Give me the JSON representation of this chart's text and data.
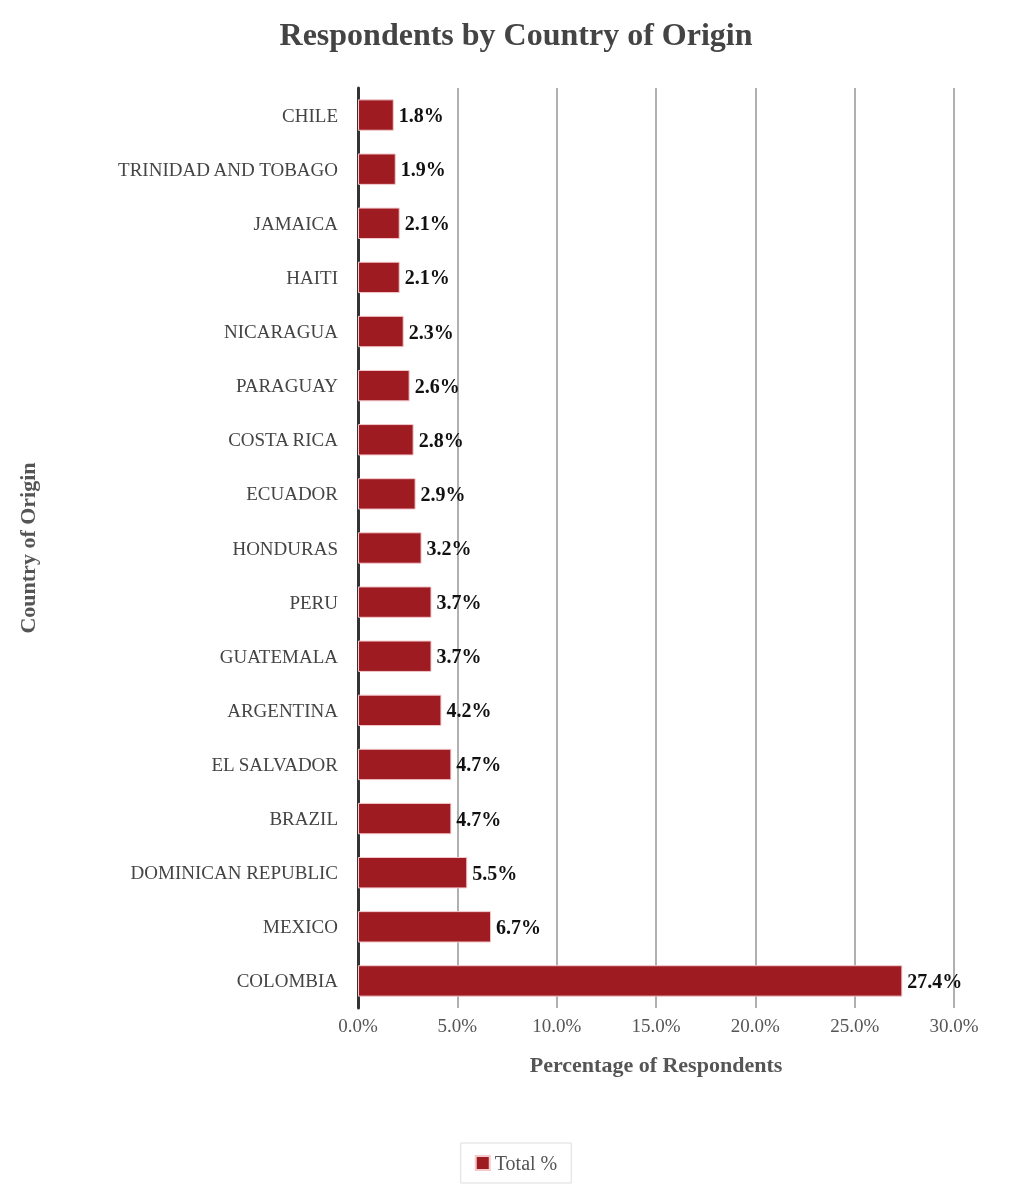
{
  "chart_data": {
    "type": "bar",
    "orientation": "horizontal",
    "title": "Respondents by Country of Origin",
    "xlabel": "Percentage of Respondents",
    "ylabel": "Country of Origin",
    "categories": [
      "CHILE",
      "TRINIDAD AND TOBAGO",
      "JAMAICA",
      "HAITI",
      "NICARAGUA",
      "PARAGUAY",
      "COSTA RICA",
      "ECUADOR",
      "HONDURAS",
      "PERU",
      "GUATEMALA",
      "ARGENTINA",
      "EL SALVADOR",
      "BRAZIL",
      "DOMINICAN REPUBLIC",
      "MEXICO",
      "COLOMBIA"
    ],
    "series": [
      {
        "name": "Total %",
        "color": "#9e1b22",
        "values": [
          1.8,
          1.9,
          2.1,
          2.1,
          2.3,
          2.6,
          2.8,
          2.9,
          3.2,
          3.7,
          3.7,
          4.2,
          4.7,
          4.7,
          5.5,
          6.7,
          27.4
        ],
        "value_labels": [
          "1.8%",
          "1.9%",
          "2.1%",
          "2.1%",
          "2.3%",
          "2.6%",
          "2.8%",
          "2.9%",
          "3.2%",
          "3.7%",
          "3.7%",
          "4.2%",
          "4.7%",
          "4.7%",
          "5.5%",
          "6.7%",
          "27.4%"
        ]
      }
    ],
    "xlim": [
      0,
      30
    ],
    "xticks": [
      {
        "value": 0,
        "label": "0.0%"
      },
      {
        "value": 5,
        "label": "5.0%"
      },
      {
        "value": 10,
        "label": "10.0%"
      },
      {
        "value": 15,
        "label": "15.0%"
      },
      {
        "value": 20,
        "label": "20.0%"
      },
      {
        "value": 25,
        "label": "25.0%"
      },
      {
        "value": 30,
        "label": "30.0%"
      }
    ],
    "grid": "x",
    "legend": "bottom"
  }
}
